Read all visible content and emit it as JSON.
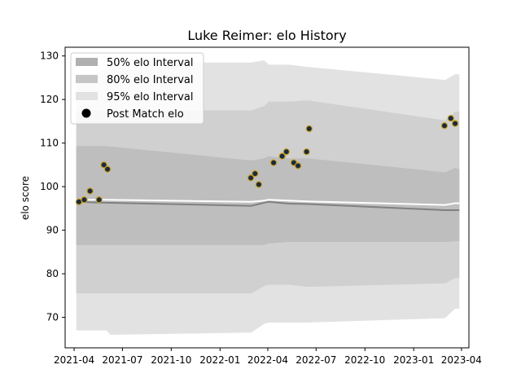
{
  "chart_data": {
    "type": "line",
    "title": "Luke Reimer: elo History",
    "ylabel": "elo score",
    "xlabel": "",
    "xlim": [
      "2021-03-15",
      "2023-04-15"
    ],
    "ylim": [
      63,
      132
    ],
    "grid": false,
    "legend_placement": "top-left",
    "x_ticks": [
      {
        "date": "2021-04-01",
        "label": "2021-04"
      },
      {
        "date": "2021-07-01",
        "label": "2021-07"
      },
      {
        "date": "2021-10-01",
        "label": "2021-10"
      },
      {
        "date": "2022-01-01",
        "label": "2022-01"
      },
      {
        "date": "2022-04-01",
        "label": "2022-04"
      },
      {
        "date": "2022-07-01",
        "label": "2022-07"
      },
      {
        "date": "2022-10-01",
        "label": "2022-10"
      },
      {
        "date": "2023-01-01",
        "label": "2023-01"
      },
      {
        "date": "2023-04-01",
        "label": "2023-04"
      }
    ],
    "y_ticks": [
      70,
      80,
      90,
      100,
      110,
      120,
      130
    ],
    "legend": [
      {
        "label": "50% elo Interval",
        "color": "#b0b0b0",
        "kind": "patch"
      },
      {
        "label": "80% elo Interval",
        "color": "#c6c6c6",
        "kind": "patch"
      },
      {
        "label": "95% elo Interval",
        "color": "#e2e2e2",
        "kind": "patch"
      },
      {
        "label": "Post Match elo",
        "color": "#000000",
        "kind": "dot"
      }
    ],
    "series": [
      {
        "name": "95% elo Interval",
        "kind": "band",
        "color": "#e2e2e2",
        "x": [
          "2021-04-05",
          "2021-05-10",
          "2021-06-01",
          "2021-06-08",
          "2022-03-01",
          "2022-03-25",
          "2022-04-03",
          "2022-05-10",
          "2022-06-15",
          "2023-03-01",
          "2023-03-20",
          "2023-03-28"
        ],
        "lower": [
          67,
          67,
          67,
          66,
          66.5,
          68.5,
          68.8,
          68.8,
          68.8,
          69.8,
          72,
          72
        ],
        "upper": [
          126,
          126,
          127,
          128.5,
          128.5,
          129,
          128,
          128,
          127.5,
          124.5,
          125.8,
          125.8
        ]
      },
      {
        "name": "80% elo Interval",
        "kind": "band",
        "color": "#d0d0d0",
        "x": [
          "2021-04-05",
          "2021-06-01",
          "2022-03-01",
          "2022-03-25",
          "2022-04-03",
          "2022-05-10",
          "2022-06-15",
          "2023-03-01",
          "2023-03-20",
          "2023-03-28"
        ],
        "lower": [
          75.5,
          75.5,
          75.5,
          77.2,
          77.5,
          77.5,
          77,
          77.8,
          79,
          79
        ],
        "upper": [
          117.5,
          117.5,
          117.5,
          118.5,
          119.5,
          119.5,
          119.8,
          115.2,
          117.2,
          117.2
        ]
      },
      {
        "name": "50% elo Interval",
        "kind": "band",
        "color": "#bebebe",
        "x": [
          "2021-04-05",
          "2021-06-01",
          "2022-03-01",
          "2022-03-25",
          "2022-04-03",
          "2022-05-10",
          "2022-06-15",
          "2023-03-01",
          "2023-03-20",
          "2023-03-28"
        ],
        "lower": [
          86.6,
          86.6,
          86.6,
          86.6,
          87,
          87.3,
          87.3,
          87.3,
          87.5,
          87.5
        ],
        "upper": [
          109.3,
          109.3,
          106,
          106.5,
          107,
          106.5,
          106.5,
          103.3,
          104.3,
          104
        ]
      },
      {
        "name": "Mean elo",
        "kind": "line",
        "color": "#808080",
        "x": [
          "2021-04-05",
          "2021-06-01",
          "2022-03-01",
          "2022-03-25",
          "2022-04-03",
          "2022-05-10",
          "2022-06-15",
          "2023-03-01",
          "2023-03-28"
        ],
        "y": [
          96.5,
          96.3,
          95.6,
          96.3,
          96.5,
          96.1,
          96.0,
          94.6,
          94.6
        ]
      },
      {
        "name": "Median elo",
        "kind": "line",
        "color": "#ffffff",
        "x": [
          "2021-04-05",
          "2021-06-01",
          "2022-03-01",
          "2022-03-25",
          "2022-04-03",
          "2022-05-10",
          "2022-06-15",
          "2023-03-01",
          "2023-03-20",
          "2023-03-28"
        ],
        "y": [
          97.0,
          97.0,
          96.5,
          96.8,
          97.0,
          96.8,
          96.6,
          95.8,
          96.2,
          96.2
        ]
      },
      {
        "name": "Post Match elo",
        "kind": "scatter",
        "color": "#1a2a40",
        "edge": "#c8a020",
        "points": [
          {
            "x": "2021-04-10",
            "y": 96.5
          },
          {
            "x": "2021-04-20",
            "y": 97.0
          },
          {
            "x": "2021-05-01",
            "y": 99.0
          },
          {
            "x": "2021-05-18",
            "y": 97.0
          },
          {
            "x": "2021-05-27",
            "y": 105.0
          },
          {
            "x": "2021-06-03",
            "y": 104.0
          },
          {
            "x": "2022-02-28",
            "y": 102.0
          },
          {
            "x": "2022-03-08",
            "y": 103.0
          },
          {
            "x": "2022-03-15",
            "y": 100.5
          },
          {
            "x": "2022-04-12",
            "y": 105.5
          },
          {
            "x": "2022-04-28",
            "y": 107.0
          },
          {
            "x": "2022-05-06",
            "y": 108.0
          },
          {
            "x": "2022-05-20",
            "y": 105.5
          },
          {
            "x": "2022-05-28",
            "y": 104.8
          },
          {
            "x": "2022-06-13",
            "y": 108.0
          },
          {
            "x": "2022-06-18",
            "y": 113.3
          },
          {
            "x": "2023-02-28",
            "y": 114.0
          },
          {
            "x": "2023-03-12",
            "y": 115.7
          },
          {
            "x": "2023-03-20",
            "y": 114.5
          }
        ]
      }
    ]
  }
}
